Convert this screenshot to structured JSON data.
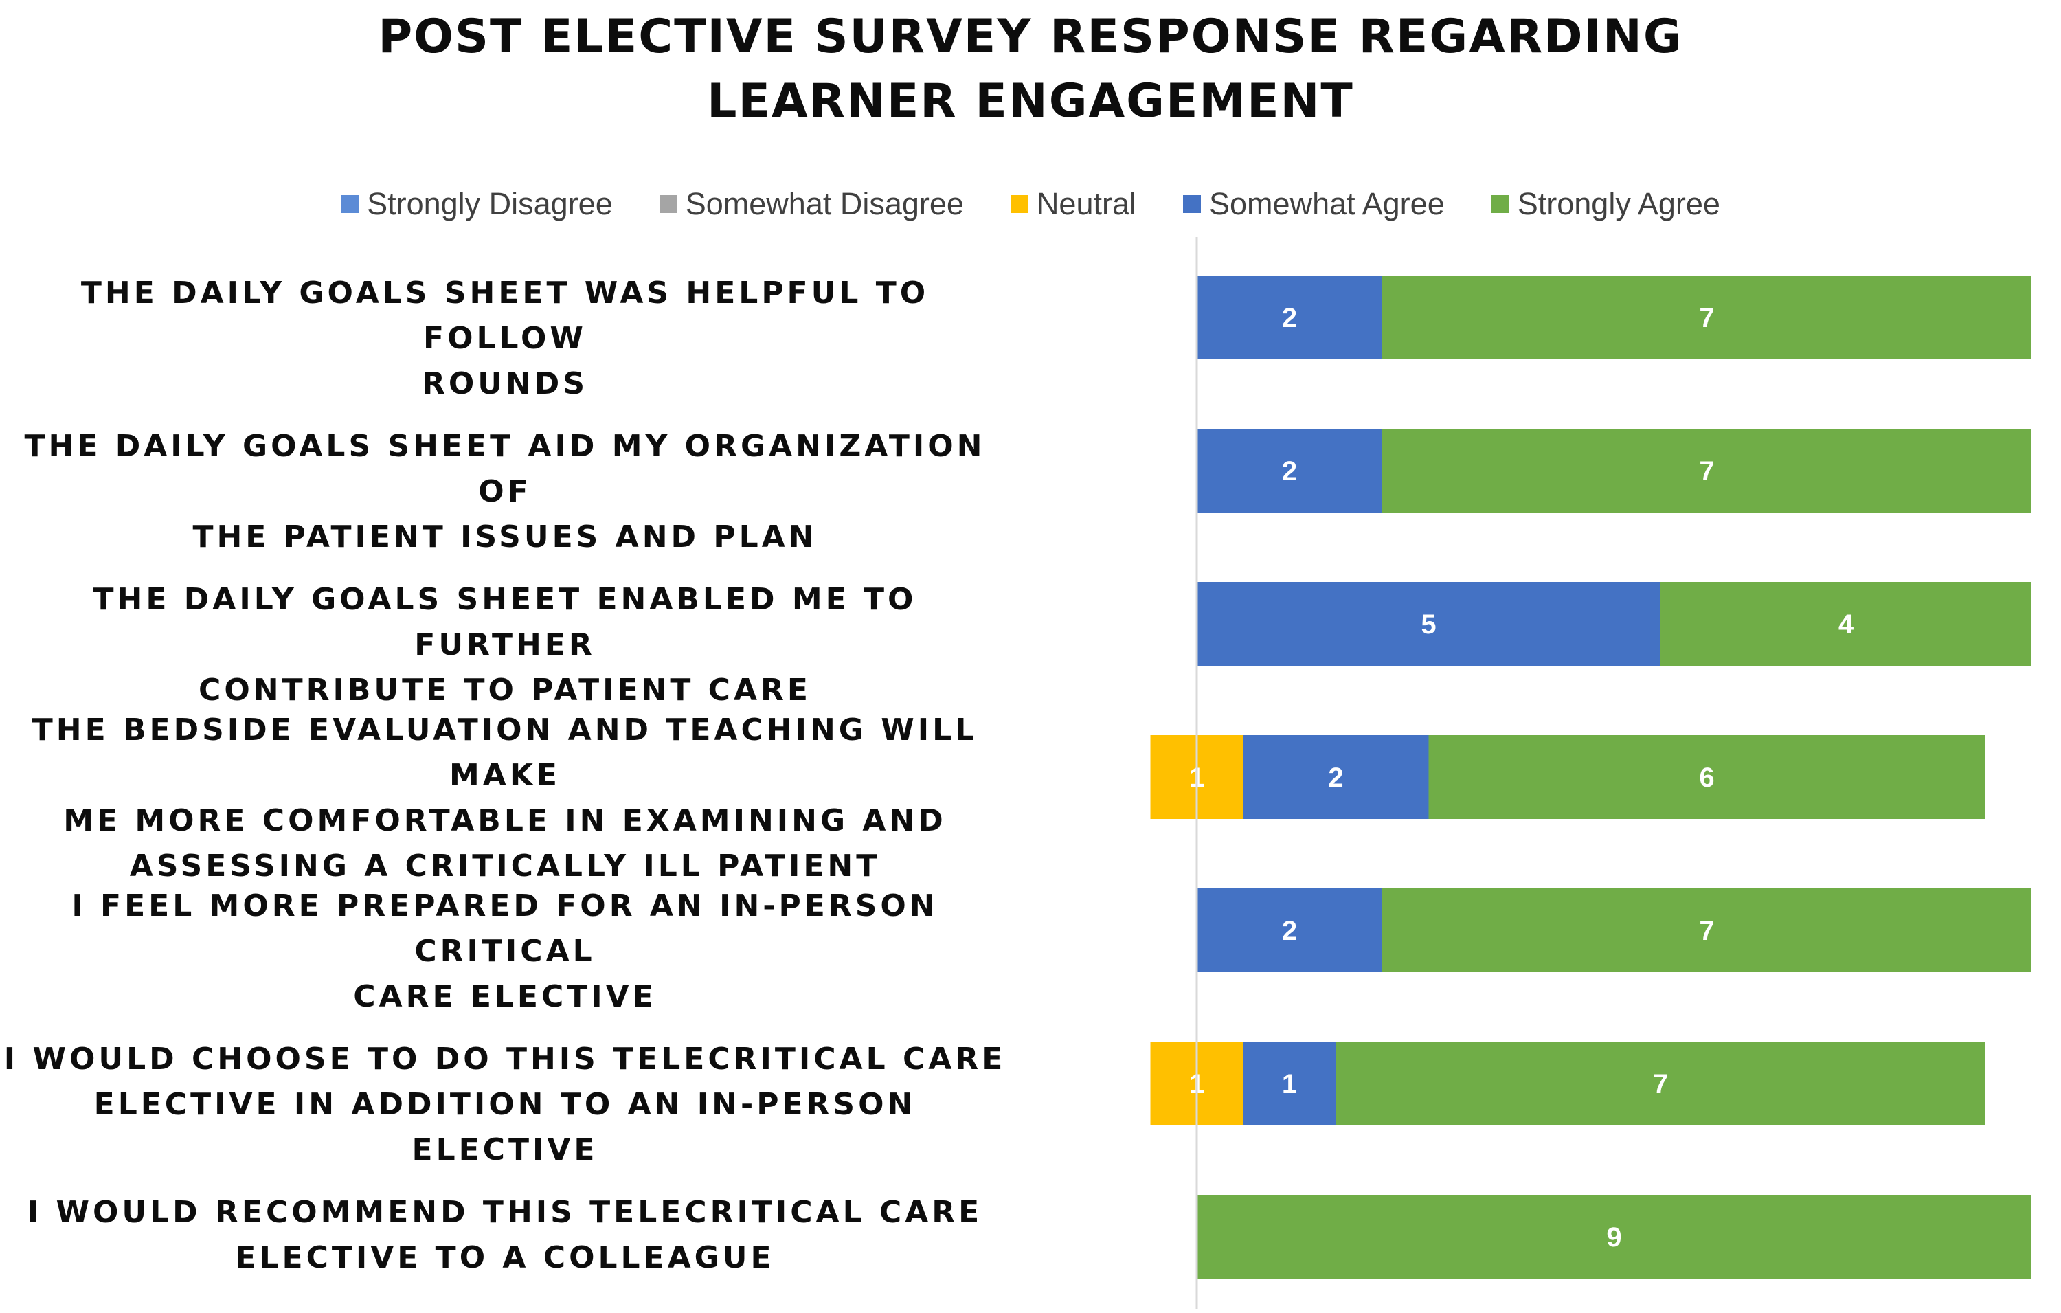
{
  "chart_data": {
    "type": "bar",
    "orientation": "horizontal",
    "stacked": true,
    "title": "POST ELECTIVE SURVEY RESPONSE REGARDING LEARNER ENGAGEMENT",
    "title_lines": [
      "POST ELECTIVE SURVEY RESPONSE REGARDING",
      "LEARNER ENGAGEMENT"
    ],
    "legend_position": "top",
    "grid": false,
    "xlim": [
      -1,
      9
    ],
    "categories": [
      "THE DAILY GOALS SHEET WAS HELPFUL TO FOLLOW ROUNDS",
      "THE DAILY GOALS SHEET AID MY ORGANIZATION OF THE PATIENT ISSUES AND PLAN",
      "THE DAILY GOALS SHEET ENABLED ME TO FURTHER CONTRIBUTE TO PATIENT CARE",
      "THE BEDSIDE EVALUATION AND TEACHING WILL MAKE ME MORE COMFORTABLE IN EXAMINING AND ASSESSING A CRITICALLY ILL PATIENT",
      "I FEEL MORE PREPARED FOR AN IN-PERSON CRITICAL CARE ELECTIVE",
      "I WOULD CHOOSE TO DO THIS TELECRITICAL CARE ELECTIVE IN ADDITION TO AN IN-PERSON ELECTIVE",
      "I WOULD RECOMMEND THIS TELECRITICAL CARE ELECTIVE TO A COLLEAGUE"
    ],
    "category_lines": [
      [
        "THE DAILY GOALS SHEET WAS HELPFUL TO FOLLOW",
        "ROUNDS"
      ],
      [
        "THE DAILY GOALS SHEET AID MY ORGANIZATION OF",
        "THE PATIENT ISSUES AND PLAN"
      ],
      [
        "THE DAILY GOALS SHEET ENABLED ME TO FURTHER",
        "CONTRIBUTE TO PATIENT CARE"
      ],
      [
        "THE BEDSIDE EVALUATION AND TEACHING WILL MAKE",
        "ME MORE COMFORTABLE IN EXAMINING AND",
        "ASSESSING A CRITICALLY ILL PATIENT"
      ],
      [
        "I FEEL MORE PREPARED FOR AN IN-PERSON CRITICAL",
        "CARE ELECTIVE"
      ],
      [
        "I WOULD CHOOSE TO DO THIS TELECRITICAL CARE",
        "ELECTIVE IN ADDITION TO AN IN-PERSON ELECTIVE"
      ],
      [
        "I WOULD RECOMMEND THIS TELECRITICAL CARE",
        "ELECTIVE TO A COLLEAGUE"
      ]
    ],
    "series": [
      {
        "name": "Strongly Disagree",
        "color": "#5b8bd6",
        "values": [
          0,
          0,
          0,
          0,
          0,
          0,
          0
        ]
      },
      {
        "name": "Somewhat Disagree",
        "color": "#a5a5a5",
        "values": [
          0,
          0,
          0,
          0,
          0,
          0,
          0
        ]
      },
      {
        "name": "Neutral",
        "color": "#ffc000",
        "values": [
          0,
          0,
          0,
          1,
          0,
          1,
          0
        ]
      },
      {
        "name": "Somewhat Agree",
        "color": "#4472c4",
        "values": [
          2,
          2,
          5,
          2,
          2,
          1,
          0
        ]
      },
      {
        "name": "Strongly Agree",
        "color": "#70ad47",
        "values": [
          7,
          7,
          4,
          6,
          7,
          7,
          9
        ]
      }
    ],
    "neutral_centered": true
  }
}
